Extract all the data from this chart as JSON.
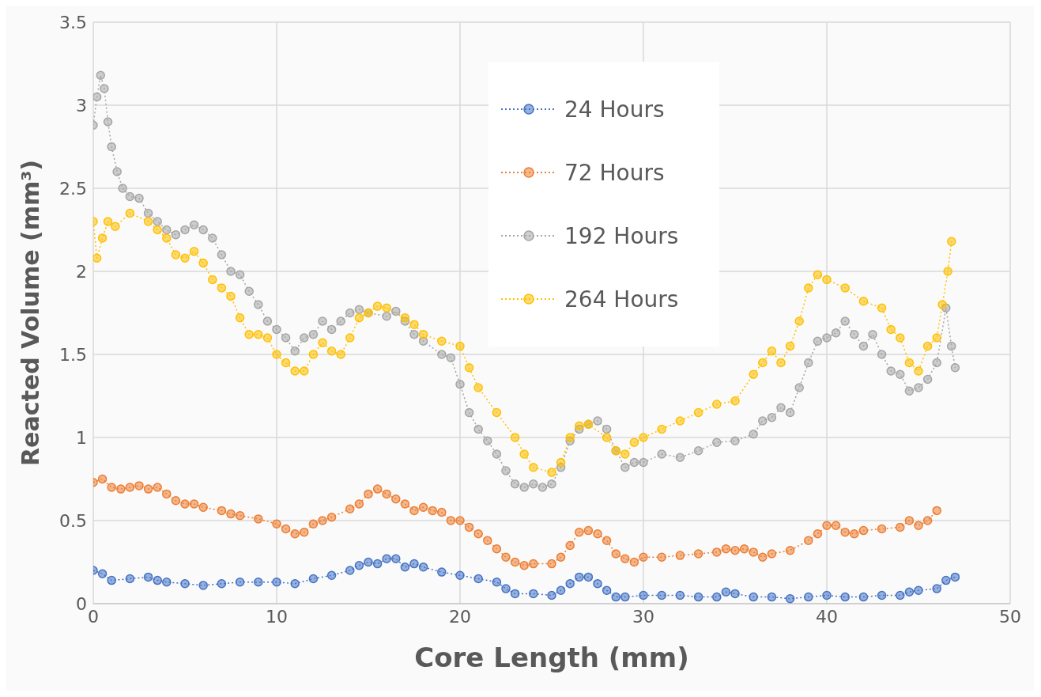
{
  "chart_data": {
    "type": "line",
    "xlabel": "Core Length (mm)",
    "ylabel": "Reacted Volume (mm³)",
    "xlim": [
      0,
      50
    ],
    "xticks": [
      0,
      10,
      20,
      30,
      40,
      50
    ],
    "ylim": [
      0,
      3.5
    ],
    "yticks": [
      0,
      0.5,
      1,
      1.5,
      2,
      2.5,
      3,
      3.5
    ],
    "grid": true,
    "legend": "top",
    "marker": "circle",
    "line_style": "dotted",
    "series": [
      {
        "name": "24 Hours",
        "color": "#4472c4",
        "x": [
          0,
          0.5,
          1,
          2,
          3,
          3.5,
          4,
          5,
          6,
          7,
          8,
          9,
          10,
          11,
          12,
          13,
          14,
          14.5,
          15,
          15.5,
          16,
          16.5,
          17,
          17.5,
          18,
          19,
          20,
          21,
          22,
          22.5,
          23,
          24,
          25,
          25.5,
          26,
          26.5,
          27,
          27.5,
          28,
          28.5,
          29,
          30,
          31,
          32,
          33,
          34,
          34.5,
          35,
          36,
          37,
          38,
          39,
          40,
          41,
          42,
          43,
          44,
          44.5,
          45,
          46,
          46.5,
          47
        ],
        "values": [
          0.2,
          0.18,
          0.14,
          0.15,
          0.16,
          0.14,
          0.13,
          0.12,
          0.11,
          0.12,
          0.13,
          0.13,
          0.13,
          0.12,
          0.15,
          0.17,
          0.2,
          0.23,
          0.25,
          0.24,
          0.27,
          0.27,
          0.22,
          0.24,
          0.22,
          0.19,
          0.17,
          0.15,
          0.13,
          0.09,
          0.06,
          0.06,
          0.05,
          0.08,
          0.12,
          0.16,
          0.16,
          0.12,
          0.08,
          0.04,
          0.04,
          0.05,
          0.05,
          0.05,
          0.04,
          0.04,
          0.07,
          0.06,
          0.04,
          0.04,
          0.03,
          0.04,
          0.05,
          0.04,
          0.04,
          0.05,
          0.05,
          0.07,
          0.08,
          0.09,
          0.14,
          0.16
        ]
      },
      {
        "name": "72 Hours",
        "color": "#ed7d31",
        "x": [
          0,
          0.5,
          1,
          1.5,
          2,
          2.5,
          3,
          3.5,
          4,
          4.5,
          5,
          5.5,
          6,
          7,
          7.5,
          8,
          9,
          10,
          10.5,
          11,
          11.5,
          12,
          12.5,
          13,
          14,
          14.5,
          15,
          15.5,
          16,
          16.5,
          17,
          17.5,
          18,
          18.5,
          19,
          19.5,
          20,
          20.5,
          21,
          21.5,
          22,
          22.5,
          23,
          23.5,
          24,
          25,
          25.5,
          26,
          26.5,
          27,
          27.5,
          28,
          28.5,
          29,
          29.5,
          30,
          31,
          32,
          33,
          34,
          34.5,
          35,
          35.5,
          36,
          36.5,
          37,
          38,
          39,
          39.5,
          40,
          40.5,
          41,
          41.5,
          42,
          43,
          44,
          44.5,
          45,
          45.5,
          46
        ],
        "values": [
          0.73,
          0.75,
          0.7,
          0.69,
          0.7,
          0.71,
          0.69,
          0.7,
          0.66,
          0.62,
          0.6,
          0.6,
          0.58,
          0.56,
          0.54,
          0.53,
          0.51,
          0.48,
          0.45,
          0.42,
          0.43,
          0.48,
          0.5,
          0.52,
          0.57,
          0.6,
          0.66,
          0.69,
          0.66,
          0.63,
          0.6,
          0.56,
          0.58,
          0.56,
          0.55,
          0.5,
          0.5,
          0.46,
          0.42,
          0.38,
          0.33,
          0.28,
          0.25,
          0.23,
          0.24,
          0.24,
          0.28,
          0.35,
          0.43,
          0.44,
          0.42,
          0.38,
          0.3,
          0.27,
          0.25,
          0.28,
          0.28,
          0.29,
          0.3,
          0.31,
          0.33,
          0.32,
          0.33,
          0.31,
          0.28,
          0.3,
          0.32,
          0.38,
          0.42,
          0.47,
          0.47,
          0.43,
          0.42,
          0.44,
          0.45,
          0.46,
          0.5,
          0.47,
          0.5,
          0.56
        ]
      },
      {
        "name": "192 Hours",
        "color": "#a5a5a5",
        "x": [
          0,
          0.2,
          0.4,
          0.6,
          0.8,
          1,
          1.3,
          1.6,
          2,
          2.5,
          3,
          3.5,
          4,
          4.5,
          5,
          5.5,
          6,
          6.5,
          7,
          7.5,
          8,
          8.5,
          9,
          9.5,
          10,
          10.5,
          11,
          11.5,
          12,
          12.5,
          13,
          13.5,
          14,
          14.5,
          15,
          16,
          16.5,
          17,
          17.5,
          18,
          19,
          19.5,
          20,
          20.5,
          21,
          21.5,
          22,
          22.5,
          23,
          23.5,
          24,
          24.5,
          25,
          25.5,
          26,
          26.5,
          27,
          27.5,
          28,
          28.5,
          29,
          29.5,
          30,
          31,
          32,
          33,
          34,
          35,
          36,
          36.5,
          37,
          37.5,
          38,
          38.5,
          39,
          39.5,
          40,
          40.5,
          41,
          41.5,
          42,
          42.5,
          43,
          43.5,
          44,
          44.5,
          45,
          45.5,
          46,
          46.5,
          46.8,
          47
        ],
        "values": [
          2.88,
          3.05,
          3.18,
          3.1,
          2.9,
          2.75,
          2.6,
          2.5,
          2.45,
          2.44,
          2.35,
          2.3,
          2.25,
          2.22,
          2.25,
          2.28,
          2.25,
          2.2,
          2.1,
          2,
          1.98,
          1.88,
          1.8,
          1.7,
          1.65,
          1.6,
          1.52,
          1.6,
          1.62,
          1.7,
          1.65,
          1.7,
          1.75,
          1.77,
          1.75,
          1.73,
          1.76,
          1.7,
          1.62,
          1.58,
          1.5,
          1.48,
          1.32,
          1.15,
          1.05,
          0.98,
          0.9,
          0.8,
          0.72,
          0.7,
          0.72,
          0.7,
          0.72,
          0.82,
          0.98,
          1.05,
          1.08,
          1.1,
          1.05,
          0.92,
          0.82,
          0.85,
          0.85,
          0.9,
          0.88,
          0.92,
          0.97,
          0.98,
          1.02,
          1.1,
          1.12,
          1.18,
          1.15,
          1.3,
          1.45,
          1.58,
          1.6,
          1.63,
          1.7,
          1.62,
          1.55,
          1.62,
          1.5,
          1.4,
          1.38,
          1.28,
          1.3,
          1.35,
          1.45,
          1.78,
          1.55,
          1.42
        ]
      },
      {
        "name": "264 Hours",
        "color": "#ffc000",
        "x": [
          0,
          0.2,
          0.5,
          0.8,
          1.2,
          2,
          3,
          3.5,
          4,
          4.5,
          5,
          5.5,
          6,
          6.5,
          7,
          7.5,
          8,
          8.5,
          9,
          9.5,
          10,
          10.5,
          11,
          11.5,
          12,
          12.5,
          13,
          13.5,
          14,
          14.5,
          15,
          15.5,
          16,
          17,
          17.5,
          18,
          19,
          20,
          20.5,
          21,
          22,
          23,
          23.5,
          24,
          25,
          25.5,
          26,
          26.5,
          27,
          28,
          28.5,
          29,
          29.5,
          30,
          31,
          32,
          33,
          34,
          35,
          36,
          36.5,
          37,
          37.5,
          38,
          38.5,
          39,
          39.5,
          40,
          41,
          42,
          43,
          43.5,
          44,
          44.5,
          45,
          45.5,
          46,
          46.3,
          46.6,
          46.8
        ],
        "values": [
          2.3,
          2.08,
          2.2,
          2.3,
          2.27,
          2.35,
          2.3,
          2.25,
          2.2,
          2.1,
          2.08,
          2.12,
          2.05,
          1.95,
          1.9,
          1.85,
          1.72,
          1.62,
          1.62,
          1.6,
          1.5,
          1.45,
          1.4,
          1.4,
          1.5,
          1.57,
          1.52,
          1.5,
          1.6,
          1.72,
          1.75,
          1.79,
          1.78,
          1.72,
          1.68,
          1.62,
          1.58,
          1.55,
          1.42,
          1.3,
          1.15,
          1,
          0.9,
          0.82,
          0.79,
          0.85,
          1,
          1.07,
          1.08,
          1,
          0.92,
          0.9,
          0.97,
          1,
          1.05,
          1.1,
          1.15,
          1.2,
          1.22,
          1.38,
          1.45,
          1.52,
          1.45,
          1.55,
          1.7,
          1.9,
          1.98,
          1.95,
          1.9,
          1.82,
          1.78,
          1.65,
          1.6,
          1.45,
          1.4,
          1.55,
          1.6,
          1.8,
          2,
          2.18
        ]
      }
    ]
  }
}
